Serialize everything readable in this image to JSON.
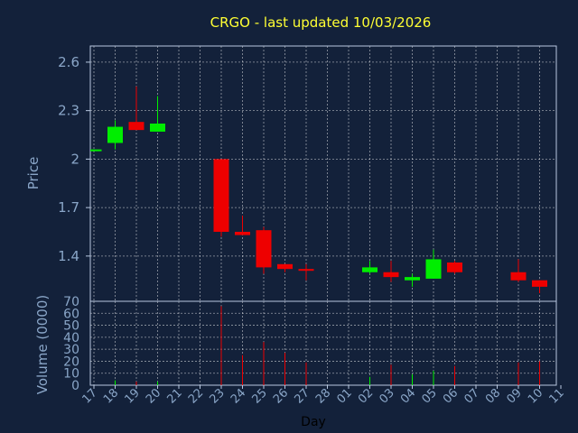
{
  "colors": {
    "background": "#13213a",
    "up": "#00ee00",
    "down": "#ee0000",
    "grid": "#ffffff",
    "frame": "#b8c8e0",
    "text": "#8aa6c8",
    "title": "#ffff33"
  },
  "chart_data": [
    {
      "type": "candlestick",
      "title": "CRGO - last updated 10/03/2026",
      "ylabel": "Price",
      "ylim": [
        1.12,
        2.7
      ],
      "yticks": [
        "2.6",
        "2.3",
        "2",
        "1.7",
        "1.4"
      ],
      "ytick_values": [
        2.6,
        2.3,
        2.0,
        1.7,
        1.4
      ],
      "grid": true,
      "candles": [
        {
          "day": "17",
          "open": 2.05,
          "high": 2.06,
          "low": 2.05,
          "close": 2.06
        },
        {
          "day": "18",
          "open": 2.1,
          "high": 2.24,
          "low": 2.06,
          "close": 2.2
        },
        {
          "day": "19",
          "open": 2.23,
          "high": 2.45,
          "low": 2.18,
          "close": 2.18
        },
        {
          "day": "20",
          "open": 2.17,
          "high": 2.39,
          "low": 2.17,
          "close": 2.22
        },
        {
          "day": "23",
          "open": 2.0,
          "high": 2.0,
          "low": 1.52,
          "close": 1.55
        },
        {
          "day": "24",
          "open": 1.55,
          "high": 1.65,
          "low": 1.53,
          "close": 1.53
        },
        {
          "day": "25",
          "open": 1.56,
          "high": 1.58,
          "low": 1.29,
          "close": 1.33
        },
        {
          "day": "26",
          "open": 1.35,
          "high": 1.35,
          "low": 1.3,
          "close": 1.32
        },
        {
          "day": "27",
          "open": 1.32,
          "high": 1.35,
          "low": 1.25,
          "close": 1.31
        },
        {
          "day": "02",
          "open": 1.3,
          "high": 1.37,
          "low": 1.29,
          "close": 1.33
        },
        {
          "day": "03",
          "open": 1.3,
          "high": 1.37,
          "low": 1.24,
          "close": 1.27
        },
        {
          "day": "04",
          "open": 1.25,
          "high": 1.29,
          "low": 1.21,
          "close": 1.27
        },
        {
          "day": "05",
          "open": 1.26,
          "high": 1.44,
          "low": 1.26,
          "close": 1.38
        },
        {
          "day": "06",
          "open": 1.36,
          "high": 1.37,
          "low": 1.29,
          "close": 1.3
        },
        {
          "day": "09",
          "open": 1.3,
          "high": 1.38,
          "low": 1.24,
          "close": 1.25
        },
        {
          "day": "10",
          "open": 1.25,
          "high": 1.25,
          "low": 1.17,
          "close": 1.21
        }
      ]
    },
    {
      "type": "bar",
      "ylabel": "Volume (0000)",
      "xlabel": "Day",
      "ylim": [
        0,
        70
      ],
      "yticks": [
        "70",
        "60",
        "50",
        "40",
        "30",
        "20",
        "10",
        "0"
      ],
      "ytick_values": [
        70,
        60,
        50,
        40,
        30,
        20,
        10,
        0
      ],
      "categories": [
        "17",
        "18",
        "19",
        "20",
        "21",
        "22",
        "23",
        "24",
        "25",
        "26",
        "27",
        "28",
        "01",
        "02",
        "03",
        "04",
        "05",
        "06",
        "07",
        "08",
        "09",
        "10",
        "11"
      ],
      "volumes": [
        {
          "day": "17",
          "value": 0,
          "dir": "up"
        },
        {
          "day": "18",
          "value": 4,
          "dir": "up"
        },
        {
          "day": "19",
          "value": 3,
          "dir": "down"
        },
        {
          "day": "20",
          "value": 3,
          "dir": "up"
        },
        {
          "day": "23",
          "value": 66,
          "dir": "down"
        },
        {
          "day": "24",
          "value": 25,
          "dir": "down"
        },
        {
          "day": "25",
          "value": 36,
          "dir": "down"
        },
        {
          "day": "26",
          "value": 27,
          "dir": "down"
        },
        {
          "day": "27",
          "value": 19,
          "dir": "down"
        },
        {
          "day": "02",
          "value": 7,
          "dir": "up"
        },
        {
          "day": "03",
          "value": 17,
          "dir": "down"
        },
        {
          "day": "04",
          "value": 9,
          "dir": "up"
        },
        {
          "day": "05",
          "value": 12,
          "dir": "up"
        },
        {
          "day": "06",
          "value": 16,
          "dir": "down"
        },
        {
          "day": "09",
          "value": 19,
          "dir": "down"
        },
        {
          "day": "10",
          "value": 20,
          "dir": "down"
        }
      ]
    }
  ]
}
